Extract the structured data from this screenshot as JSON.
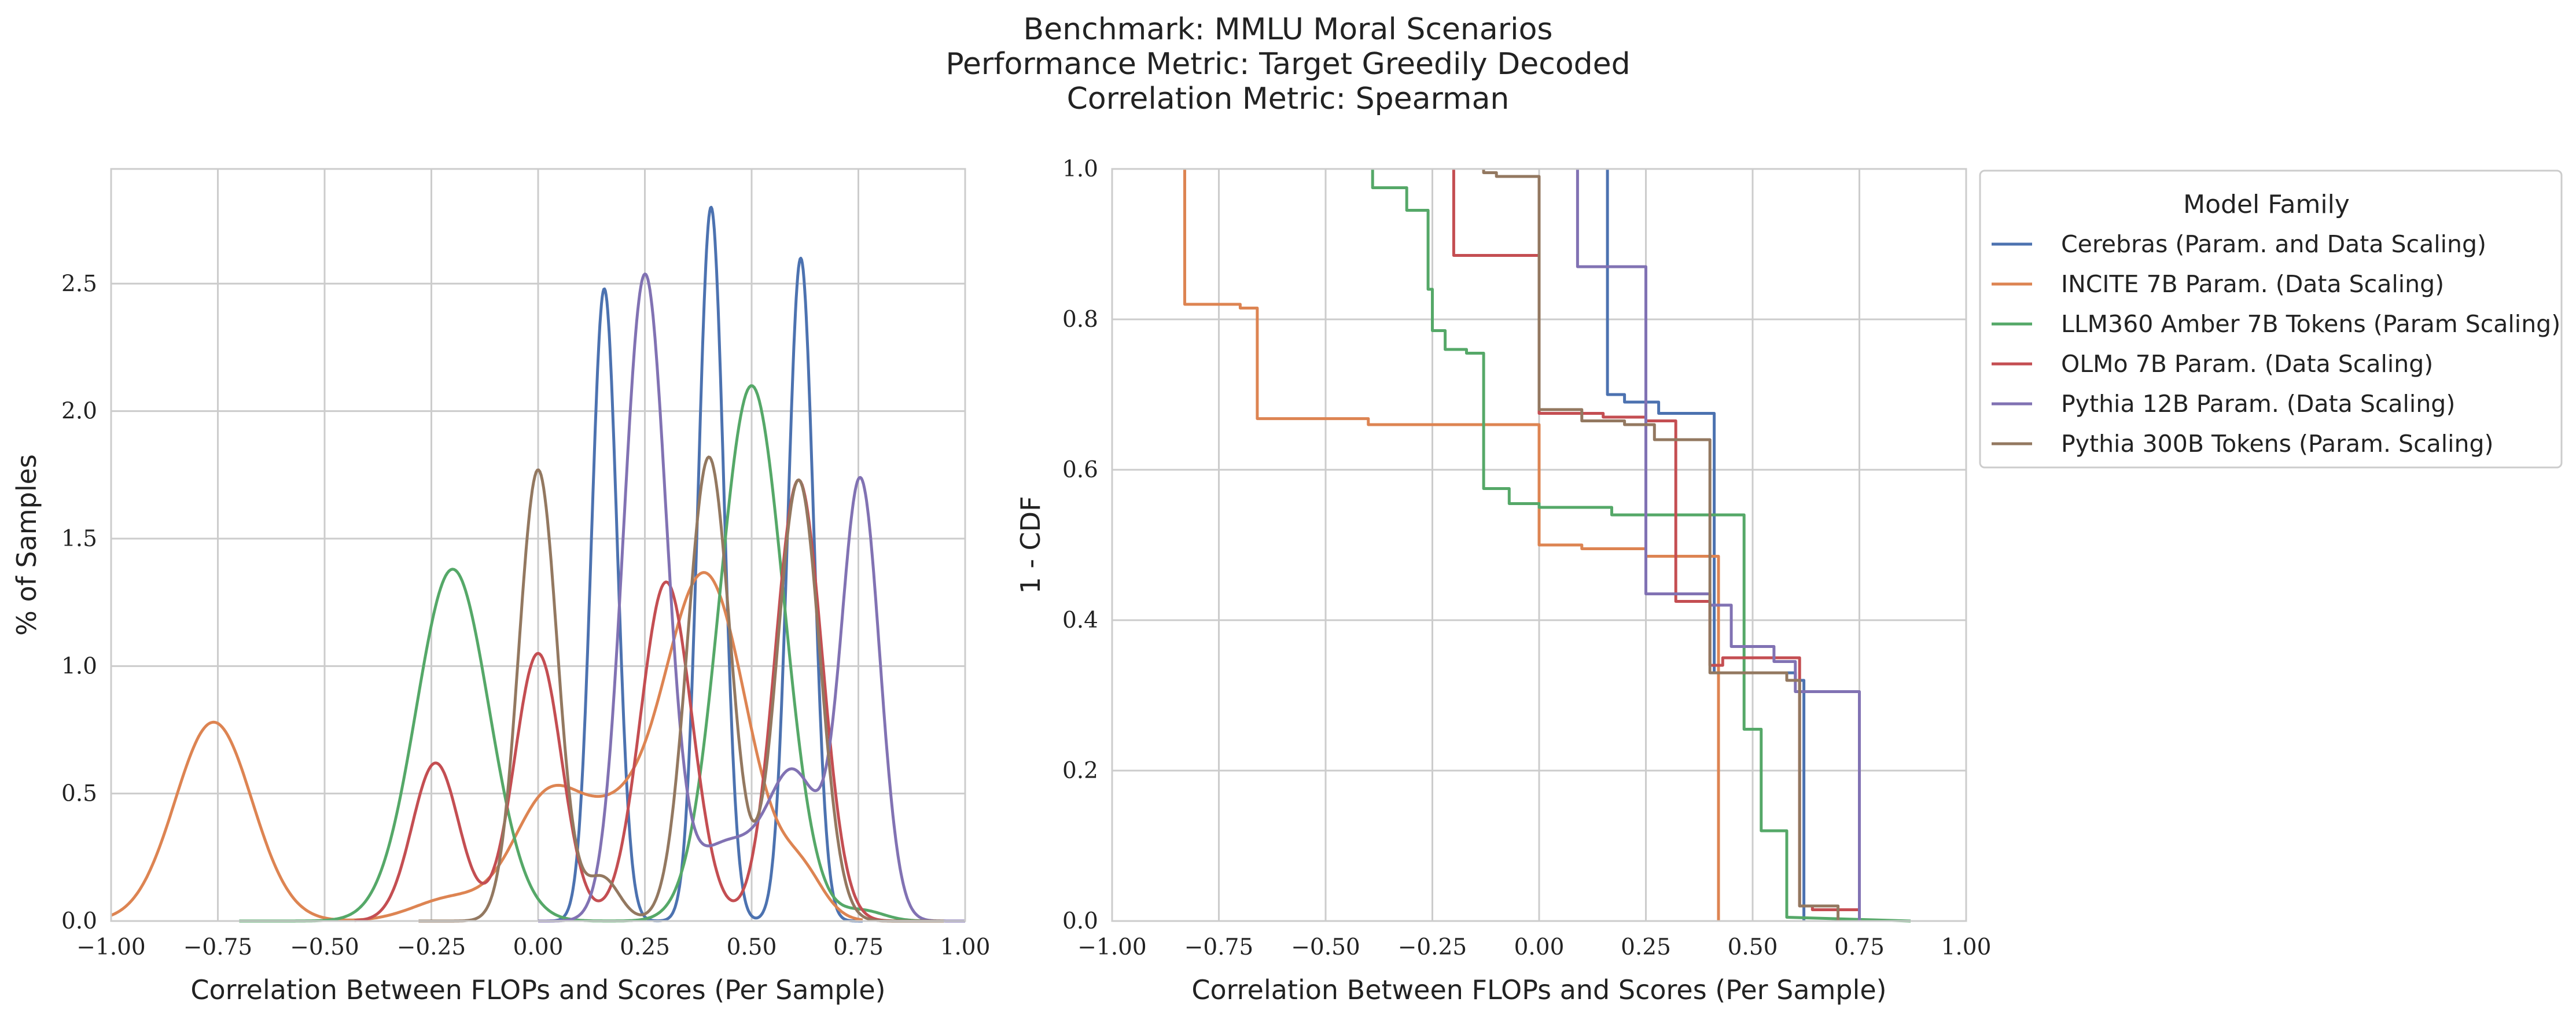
{
  "figure": {
    "title_lines": [
      "Benchmark: MMLU Moral Scenarios",
      "Performance Metric: Target Greedily Decoded",
      "Correlation Metric: Spearman"
    ]
  },
  "colors": {
    "Cerebras (Param. and Data Scaling)": "#4c72b0",
    "INCITE 7B Param. (Data Scaling)": "#dd8452",
    "LLM360 Amber 7B Tokens (Param Scaling)": "#55a868",
    "OLMo 7B Param. (Data Scaling)": "#c44e52",
    "Pythia 12B Param. (Data Scaling)": "#8172b3",
    "Pythia 300B Tokens (Param. Scaling)": "#937860"
  },
  "legend": {
    "title": "Model Family",
    "placement": "upper-left outside right panel",
    "entries": [
      "Cerebras (Param. and Data Scaling)",
      "INCITE 7B Param. (Data Scaling)",
      "LLM360 Amber 7B Tokens (Param Scaling)",
      "OLMo 7B Param. (Data Scaling)",
      "Pythia 12B Param. (Data Scaling)",
      "Pythia 300B Tokens (Param. Scaling)"
    ]
  },
  "chart_data": [
    {
      "type": "line",
      "subtype": "kde",
      "xlabel": "Correlation Between FLOPs and Scores (Per Sample)",
      "ylabel": "% of Samples",
      "xlim": [
        -1.0,
        1.0
      ],
      "ylim": [
        0,
        2.95
      ],
      "xticks": [
        "−1.00",
        "−0.75",
        "−0.50",
        "−0.25",
        "0.00",
        "0.25",
        "0.50",
        "0.75",
        "1.00"
      ],
      "yticks": [
        "0.0",
        "0.5",
        "1.0",
        "1.5",
        "2.0",
        "2.5"
      ],
      "grid": true,
      "series": [
        {
          "name": "Cerebras (Param. and Data Scaling)",
          "support": [
            0.0,
            0.76
          ],
          "components": [
            [
              0.155,
              0.03,
              2.48
            ],
            [
              0.405,
              0.03,
              2.8
            ],
            [
              0.615,
              0.03,
              2.6
            ]
          ]
        },
        {
          "name": "INCITE 7B Param. (Data Scaling)",
          "support": [
            -1.0,
            0.76
          ],
          "components": [
            [
              -0.76,
              0.09,
              0.78
            ],
            [
              -0.2,
              0.09,
              0.09
            ],
            [
              0.02,
              0.08,
              0.46
            ],
            [
              0.17,
              0.08,
              0.3
            ],
            [
              0.39,
              0.1,
              1.36
            ],
            [
              0.62,
              0.05,
              0.15
            ]
          ]
        },
        {
          "name": "LLM360 Amber 7B Tokens (Param Scaling)",
          "support": [
            -0.7,
            0.95
          ],
          "components": [
            [
              -0.2,
              0.085,
              1.38
            ],
            [
              0.5,
              0.075,
              2.1
            ],
            [
              0.76,
              0.05,
              0.04
            ]
          ]
        },
        {
          "name": "OLMo 7B Param. (Data Scaling)",
          "support": [
            -0.43,
            0.95
          ],
          "components": [
            [
              -0.24,
              0.055,
              0.62
            ],
            [
              0.0,
              0.055,
              1.05
            ],
            [
              0.3,
              0.06,
              1.33
            ],
            [
              0.61,
              0.055,
              1.73
            ]
          ]
        },
        {
          "name": "Pythia 12B Param. (Data Scaling)",
          "support": [
            0.0,
            1.0
          ],
          "components": [
            [
              0.25,
              0.05,
              2.52
            ],
            [
              0.44,
              0.08,
              0.3
            ],
            [
              0.6,
              0.06,
              0.55
            ],
            [
              0.755,
              0.045,
              1.72
            ]
          ]
        },
        {
          "name": "Pythia 300B Tokens (Param. Scaling)",
          "support": [
            -0.28,
            0.95
          ],
          "components": [
            [
              0.0,
              0.045,
              1.77
            ],
            [
              0.15,
              0.04,
              0.17
            ],
            [
              0.4,
              0.05,
              1.82
            ],
            [
              0.61,
              0.05,
              1.73
            ]
          ]
        }
      ]
    },
    {
      "type": "line",
      "subtype": "step (1 - CDF)",
      "xlabel": "Correlation Between FLOPs and Scores (Per Sample)",
      "ylabel": "1 - CDF",
      "xlim": [
        -1.0,
        1.0
      ],
      "ylim": [
        0,
        1.0
      ],
      "xticks": [
        "−1.00",
        "−0.75",
        "−0.50",
        "−0.25",
        "0.00",
        "0.25",
        "0.50",
        "0.75",
        "1.00"
      ],
      "yticks": [
        "0.0",
        "0.2",
        "0.4",
        "0.6",
        "0.8",
        "1.0"
      ],
      "grid": true,
      "series": [
        {
          "name": "Cerebras (Param. and Data Scaling)",
          "points": [
            [
              0.16,
              1.0
            ],
            [
              0.16,
              0.7
            ],
            [
              0.2,
              0.7
            ],
            [
              0.2,
              0.69
            ],
            [
              0.28,
              0.69
            ],
            [
              0.28,
              0.675
            ],
            [
              0.41,
              0.675
            ],
            [
              0.41,
              0.33
            ],
            [
              0.6,
              0.33
            ],
            [
              0.6,
              0.32
            ],
            [
              0.62,
              0.32
            ],
            [
              0.62,
              0.0
            ]
          ]
        },
        {
          "name": "INCITE 7B Param. (Data Scaling)",
          "points": [
            [
              -0.83,
              1.0
            ],
            [
              -0.83,
              0.82
            ],
            [
              -0.7,
              0.82
            ],
            [
              -0.7,
              0.815
            ],
            [
              -0.66,
              0.815
            ],
            [
              -0.66,
              0.668
            ],
            [
              -0.4,
              0.668
            ],
            [
              -0.4,
              0.66
            ],
            [
              0.0,
              0.66
            ],
            [
              0.0,
              0.5
            ],
            [
              0.1,
              0.5
            ],
            [
              0.1,
              0.495
            ],
            [
              0.25,
              0.495
            ],
            [
              0.25,
              0.485
            ],
            [
              0.42,
              0.485
            ],
            [
              0.42,
              0.0
            ]
          ]
        },
        {
          "name": "LLM360 Amber 7B Tokens (Param Scaling)",
          "points": [
            [
              -0.39,
              1.0
            ],
            [
              -0.39,
              0.975
            ],
            [
              -0.31,
              0.975
            ],
            [
              -0.31,
              0.945
            ],
            [
              -0.26,
              0.945
            ],
            [
              -0.26,
              0.84
            ],
            [
              -0.25,
              0.84
            ],
            [
              -0.25,
              0.785
            ],
            [
              -0.22,
              0.785
            ],
            [
              -0.22,
              0.76
            ],
            [
              -0.17,
              0.76
            ],
            [
              -0.17,
              0.755
            ],
            [
              -0.13,
              0.755
            ],
            [
              -0.13,
              0.575
            ],
            [
              -0.07,
              0.575
            ],
            [
              -0.07,
              0.555
            ],
            [
              0.0,
              0.555
            ],
            [
              0.0,
              0.55
            ],
            [
              0.17,
              0.55
            ],
            [
              0.17,
              0.54
            ],
            [
              0.48,
              0.54
            ],
            [
              0.48,
              0.255
            ],
            [
              0.52,
              0.255
            ],
            [
              0.52,
              0.12
            ],
            [
              0.58,
              0.12
            ],
            [
              0.58,
              0.005
            ],
            [
              0.87,
              0.0
            ]
          ]
        },
        {
          "name": "OLMo 7B Param. (Data Scaling)",
          "points": [
            [
              -0.2,
              1.0
            ],
            [
              -0.2,
              0.885
            ],
            [
              0.0,
              0.885
            ],
            [
              0.0,
              0.675
            ],
            [
              0.15,
              0.675
            ],
            [
              0.15,
              0.67
            ],
            [
              0.25,
              0.67
            ],
            [
              0.25,
              0.665
            ],
            [
              0.32,
              0.665
            ],
            [
              0.32,
              0.425
            ],
            [
              0.4,
              0.425
            ],
            [
              0.4,
              0.34
            ],
            [
              0.43,
              0.34
            ],
            [
              0.43,
              0.35
            ],
            [
              0.61,
              0.35
            ],
            [
              0.61,
              0.02
            ],
            [
              0.64,
              0.02
            ],
            [
              0.64,
              0.015
            ],
            [
              0.75,
              0.015
            ],
            [
              0.75,
              0.0
            ]
          ]
        },
        {
          "name": "Pythia 12B Param. (Data Scaling)",
          "points": [
            [
              0.09,
              1.0
            ],
            [
              0.09,
              0.87
            ],
            [
              0.25,
              0.87
            ],
            [
              0.25,
              0.435
            ],
            [
              0.4,
              0.435
            ],
            [
              0.4,
              0.42
            ],
            [
              0.45,
              0.42
            ],
            [
              0.45,
              0.365
            ],
            [
              0.55,
              0.365
            ],
            [
              0.55,
              0.345
            ],
            [
              0.6,
              0.345
            ],
            [
              0.6,
              0.305
            ],
            [
              0.75,
              0.305
            ],
            [
              0.75,
              0.0
            ]
          ]
        },
        {
          "name": "Pythia 300B Tokens (Param. Scaling)",
          "points": [
            [
              -0.13,
              1.0
            ],
            [
              -0.13,
              0.995
            ],
            [
              -0.1,
              0.995
            ],
            [
              -0.1,
              0.99
            ],
            [
              0.0,
              0.99
            ],
            [
              0.0,
              0.68
            ],
            [
              0.1,
              0.68
            ],
            [
              0.1,
              0.665
            ],
            [
              0.2,
              0.665
            ],
            [
              0.2,
              0.66
            ],
            [
              0.27,
              0.66
            ],
            [
              0.27,
              0.64
            ],
            [
              0.4,
              0.64
            ],
            [
              0.4,
              0.33
            ],
            [
              0.58,
              0.33
            ],
            [
              0.58,
              0.32
            ],
            [
              0.61,
              0.32
            ],
            [
              0.61,
              0.02
            ],
            [
              0.7,
              0.02
            ],
            [
              0.7,
              0.0
            ]
          ]
        }
      ]
    }
  ]
}
